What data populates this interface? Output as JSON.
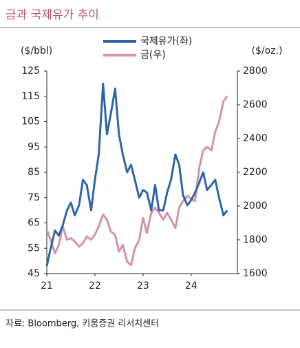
{
  "chart_data": {
    "type": "line",
    "title": "금과 국제유가 추이",
    "y_label": "($/bbl)",
    "y2_label": "($/oz.)",
    "source": "자료: Bloomberg, 키움증권 리서치센터",
    "x": [
      21,
      21.08,
      21.17,
      21.25,
      21.33,
      21.42,
      21.5,
      21.58,
      21.67,
      21.75,
      21.83,
      21.92,
      22,
      22.08,
      22.17,
      22.25,
      22.33,
      22.42,
      22.5,
      22.58,
      22.67,
      22.75,
      22.83,
      22.92,
      23,
      23.08,
      23.17,
      23.25,
      23.33,
      23.42,
      23.5,
      23.58,
      23.67,
      23.75,
      23.83,
      23.92,
      24,
      24.08,
      24.17,
      24.25,
      24.33,
      24.42,
      24.5,
      24.58,
      24.67,
      24.75
    ],
    "series": [
      {
        "name": "국제유가(좌)",
        "color": "#2e64a8",
        "values": [
          48,
          55,
          62,
          60,
          64,
          70,
          73,
          68,
          72,
          82,
          80,
          70,
          82,
          92,
          120,
          100,
          108,
          118,
          100,
          92,
          85,
          88,
          82,
          75,
          78,
          77,
          70,
          80,
          70,
          70,
          77,
          82,
          92,
          88,
          76,
          72,
          74,
          77,
          81,
          85,
          78,
          80,
          82,
          75,
          68,
          70
        ]
      },
      {
        "name": "금(우)",
        "color": "#d493a7",
        "axis": "y2",
        "values": [
          1860,
          1800,
          1720,
          1770,
          1880,
          1800,
          1810,
          1790,
          1760,
          1780,
          1820,
          1800,
          1830,
          1880,
          1950,
          1920,
          1850,
          1830,
          1730,
          1770,
          1670,
          1650,
          1750,
          1800,
          1930,
          1840,
          1960,
          1990,
          1960,
          1920,
          1960,
          1920,
          1870,
          1990,
          2030,
          2060,
          2040,
          2030,
          2230,
          2330,
          2350,
          2330,
          2440,
          2500,
          2620,
          2650
        ]
      }
    ],
    "xlim": [
      21,
      24.96
    ],
    "xticks": [
      21,
      22,
      23,
      24
    ],
    "ylim": [
      45,
      125
    ],
    "yticks": [
      45,
      55,
      65,
      75,
      85,
      95,
      105,
      115,
      125
    ],
    "y2lim": [
      1600,
      2800
    ],
    "y2ticks": [
      1600,
      1800,
      2000,
      2200,
      2400,
      2600,
      2800
    ]
  }
}
